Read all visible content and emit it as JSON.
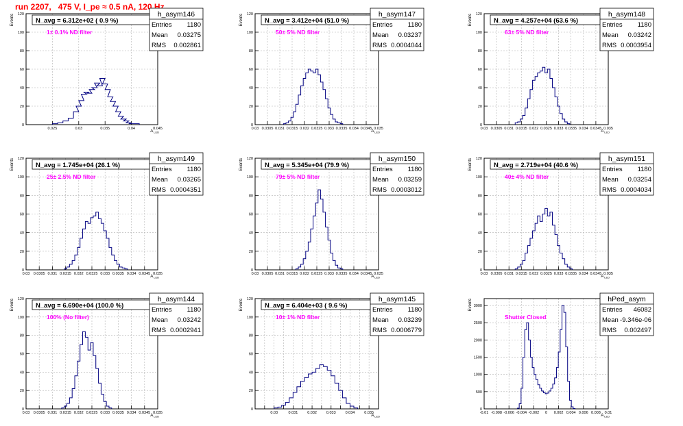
{
  "page_title": "run 2207,   475 V, I_pe ≈ 0.5 nA, 120 Hz",
  "stat_labels": {
    "entries": "Entries",
    "mean": "Mean",
    "rms": "RMS"
  },
  "colors": {
    "title": "#ff0000",
    "histogram": "#000080",
    "annotation": "#ff00ff",
    "grid": "#b0b0b0"
  },
  "chart_data": [
    {
      "type": "histogram",
      "name": "h_asym146",
      "navg": "N_avg = 6.312e+02 ( 0.9 %)",
      "annotation": "1± 0.1% ND filter",
      "entries": "1180",
      "mean": "0.03275",
      "rms": "0.002861",
      "ylabel": "Events",
      "xlabel": "A",
      "xlabel_sub": "LED",
      "xlim": [
        0.02,
        0.045
      ],
      "ylim": [
        0,
        120
      ],
      "xticks": [
        0.025,
        0.03,
        0.035,
        0.04,
        0.045
      ],
      "xtick_labels": [
        "0.025",
        "0.03",
        "0.035",
        "0.04",
        "0.045"
      ],
      "yticks": [
        0,
        20,
        40,
        60,
        80,
        100,
        120
      ],
      "ytick_labels": [
        "0",
        "20",
        "40",
        "60",
        "80",
        "100",
        "120"
      ],
      "x": [
        0.0255,
        0.0265,
        0.0275,
        0.0285,
        0.0295,
        0.03,
        0.0305,
        0.031,
        0.0315,
        0.032,
        0.0325,
        0.033,
        0.0335,
        0.034,
        0.0345,
        0.035,
        0.0355,
        0.036,
        0.0365,
        0.037,
        0.0375,
        0.038,
        0.0385,
        0.039,
        0.0395,
        0.04,
        0.041
      ],
      "values": [
        1,
        2,
        4,
        7,
        14,
        20,
        26,
        33,
        35,
        34,
        38,
        40,
        45,
        42,
        50,
        44,
        38,
        30,
        25,
        20,
        14,
        9,
        6,
        4,
        2,
        1,
        1
      ]
    },
    {
      "type": "histogram",
      "name": "h_asym147",
      "navg": "N_avg = 3.412e+04 (51.0 %)",
      "annotation": "50± 5% ND filter",
      "entries": "1180",
      "mean": "0.03237",
      "rms": "0.0004044",
      "ylabel": "Events",
      "xlabel": "A",
      "xlabel_sub": "LED",
      "xlim": [
        0.03,
        0.035
      ],
      "ylim": [
        0,
        120
      ],
      "xticks": [
        0.03,
        0.0305,
        0.031,
        0.0315,
        0.032,
        0.0325,
        0.033,
        0.0335,
        0.034,
        0.0345,
        0.035
      ],
      "xtick_labels": [
        "0.03",
        "0.0305",
        "0.031",
        "0.0315",
        "0.032",
        "0.0325",
        "0.033",
        "0.0335",
        "0.034",
        "0.0345",
        "0.035"
      ],
      "yticks": [
        0,
        20,
        40,
        60,
        80,
        100,
        120
      ],
      "ytick_labels": [
        "0",
        "20",
        "40",
        "60",
        "80",
        "100",
        "120"
      ],
      "x": [
        0.0312,
        0.0313,
        0.0314,
        0.0315,
        0.0316,
        0.0317,
        0.0318,
        0.0319,
        0.032,
        0.0321,
        0.0322,
        0.0323,
        0.0324,
        0.0325,
        0.0326,
        0.0327,
        0.0328,
        0.0329,
        0.033,
        0.0331,
        0.0332,
        0.0333,
        0.0334,
        0.0335
      ],
      "values": [
        1,
        2,
        4,
        8,
        14,
        22,
        32,
        42,
        50,
        56,
        60,
        58,
        56,
        60,
        54,
        46,
        38,
        28,
        18,
        11,
        6,
        3,
        2,
        1
      ]
    },
    {
      "type": "histogram",
      "name": "h_asym148",
      "navg": "N_avg = 4.257e+04 (63.6 %)",
      "annotation": "63± 5% ND filter",
      "entries": "1180",
      "mean": "0.03242",
      "rms": "0.0003954",
      "ylabel": "Events",
      "xlabel": "A",
      "xlabel_sub": "LED",
      "xlim": [
        0.03,
        0.035
      ],
      "ylim": [
        0,
        120
      ],
      "xticks": [
        0.03,
        0.0305,
        0.031,
        0.0315,
        0.032,
        0.0325,
        0.033,
        0.0335,
        0.034,
        0.0345,
        0.035
      ],
      "xtick_labels": [
        "0.03",
        "0.0305",
        "0.031",
        "0.0315",
        "0.032",
        "0.0325",
        "0.033",
        "0.0335",
        "0.034",
        "0.0345",
        "0.035"
      ],
      "yticks": [
        0,
        20,
        40,
        60,
        80,
        100,
        120
      ],
      "ytick_labels": [
        "0",
        "20",
        "40",
        "60",
        "80",
        "100",
        "120"
      ],
      "x": [
        0.0313,
        0.0314,
        0.0315,
        0.0316,
        0.0317,
        0.0318,
        0.0319,
        0.032,
        0.0321,
        0.0322,
        0.0323,
        0.0324,
        0.0325,
        0.0326,
        0.0327,
        0.0328,
        0.0329,
        0.033,
        0.0331,
        0.0332,
        0.0333,
        0.0334
      ],
      "values": [
        2,
        3,
        6,
        10,
        18,
        28,
        38,
        48,
        52,
        56,
        58,
        62,
        56,
        60,
        50,
        40,
        30,
        20,
        12,
        6,
        3,
        1
      ]
    },
    {
      "type": "histogram",
      "name": "h_asym149",
      "navg": "N_avg = 1.745e+04 (26.1 %)",
      "annotation": "25± 2.5% ND filter",
      "entries": "1180",
      "mean": "0.03265",
      "rms": "0.0004351",
      "ylabel": "Events",
      "xlabel": "A",
      "xlabel_sub": "LED",
      "xlim": [
        0.03,
        0.035
      ],
      "ylim": [
        0,
        120
      ],
      "xticks": [
        0.03,
        0.0305,
        0.031,
        0.0315,
        0.032,
        0.0325,
        0.033,
        0.0335,
        0.034,
        0.0345,
        0.035
      ],
      "xtick_labels": [
        "0.03",
        "0.0305",
        "0.031",
        "0.0315",
        "0.032",
        "0.0325",
        "0.033",
        "0.0335",
        "0.034",
        "0.0345",
        "0.035"
      ],
      "yticks": [
        0,
        20,
        40,
        60,
        80,
        100,
        120
      ],
      "ytick_labels": [
        "0",
        "20",
        "40",
        "60",
        "80",
        "100",
        "120"
      ],
      "x": [
        0.0315,
        0.0316,
        0.0317,
        0.0318,
        0.0319,
        0.032,
        0.0321,
        0.0322,
        0.0323,
        0.0324,
        0.0325,
        0.0326,
        0.0327,
        0.0328,
        0.0329,
        0.033,
        0.0331,
        0.0332,
        0.0333,
        0.0334,
        0.0335,
        0.0336,
        0.0337,
        0.0338
      ],
      "values": [
        1,
        3,
        6,
        10,
        16,
        24,
        34,
        44,
        52,
        50,
        56,
        58,
        62,
        55,
        50,
        42,
        34,
        24,
        16,
        10,
        6,
        3,
        2,
        1
      ]
    },
    {
      "type": "histogram",
      "name": "h_asym150",
      "navg": "N_avg = 5.345e+04 (79.9 %)",
      "annotation": "79± 5% ND filter",
      "entries": "1180",
      "mean": "0.03259",
      "rms": "0.0003012",
      "ylabel": "Events",
      "xlabel": "A",
      "xlabel_sub": "LED",
      "xlim": [
        0.03,
        0.035
      ],
      "ylim": [
        0,
        120
      ],
      "xticks": [
        0.03,
        0.0305,
        0.031,
        0.0315,
        0.032,
        0.0325,
        0.033,
        0.0335,
        0.034,
        0.0345,
        0.035
      ],
      "xtick_labels": [
        "0.03",
        "0.0305",
        "0.031",
        "0.0315",
        "0.032",
        "0.0325",
        "0.033",
        "0.0335",
        "0.034",
        "0.0345",
        "0.035"
      ],
      "yticks": [
        0,
        20,
        40,
        60,
        80,
        100,
        120
      ],
      "ytick_labels": [
        "0",
        "20",
        "40",
        "60",
        "80",
        "100",
        "120"
      ],
      "x": [
        0.0317,
        0.0318,
        0.0319,
        0.032,
        0.0321,
        0.0322,
        0.0323,
        0.0324,
        0.0325,
        0.0326,
        0.0327,
        0.0328,
        0.0329,
        0.033,
        0.0331,
        0.0332,
        0.0333,
        0.0334,
        0.0335
      ],
      "values": [
        1,
        3,
        6,
        12,
        20,
        30,
        44,
        58,
        72,
        86,
        76,
        62,
        46,
        32,
        18,
        10,
        5,
        2,
        1
      ]
    },
    {
      "type": "histogram",
      "name": "h_asym151",
      "navg": "N_avg = 2.719e+04 (40.6 %)",
      "annotation": "40± 4% ND filter",
      "entries": "1180",
      "mean": "0.03254",
      "rms": "0.0004034",
      "ylabel": "Events",
      "xlabel": "A",
      "xlabel_sub": "LED",
      "xlim": [
        0.03,
        0.035
      ],
      "ylim": [
        0,
        120
      ],
      "xticks": [
        0.03,
        0.0305,
        0.031,
        0.0315,
        0.032,
        0.0325,
        0.033,
        0.0335,
        0.034,
        0.0345,
        0.035
      ],
      "xtick_labels": [
        "0.03",
        "0.0305",
        "0.031",
        "0.0315",
        "0.032",
        "0.0325",
        "0.033",
        "0.0335",
        "0.034",
        "0.0345",
        "0.035"
      ],
      "yticks": [
        0,
        20,
        40,
        60,
        80,
        100,
        120
      ],
      "ytick_labels": [
        "0",
        "20",
        "40",
        "60",
        "80",
        "100",
        "120"
      ],
      "x": [
        0.0313,
        0.0314,
        0.0315,
        0.0316,
        0.0317,
        0.0318,
        0.0319,
        0.032,
        0.0321,
        0.0322,
        0.0323,
        0.0324,
        0.0325,
        0.0326,
        0.0327,
        0.0328,
        0.0329,
        0.033,
        0.0331,
        0.0332,
        0.0333,
        0.0334,
        0.0335
      ],
      "values": [
        1,
        3,
        6,
        10,
        18,
        26,
        34,
        42,
        50,
        58,
        52,
        60,
        66,
        58,
        62,
        48,
        38,
        26,
        18,
        12,
        6,
        3,
        1
      ]
    },
    {
      "type": "histogram",
      "name": "h_asym144",
      "navg": "N_avg = 6.690e+04 (100.0 %)",
      "annotation": "100% (No filter)",
      "entries": "1180",
      "mean": "0.03242",
      "rms": "0.0002941",
      "ylabel": "Events",
      "xlabel": "A",
      "xlabel_sub": "LED",
      "xlim": [
        0.03,
        0.035
      ],
      "ylim": [
        0,
        120
      ],
      "xticks": [
        0.03,
        0.0305,
        0.031,
        0.0315,
        0.032,
        0.0325,
        0.033,
        0.0335,
        0.034,
        0.0345,
        0.035
      ],
      "xtick_labels": [
        "0.03",
        "0.0305",
        "0.031",
        "0.0315",
        "0.032",
        "0.0325",
        "0.033",
        "0.0335",
        "0.034",
        "0.0345",
        "0.035"
      ],
      "yticks": [
        0,
        20,
        40,
        60,
        80,
        100,
        120
      ],
      "ytick_labels": [
        "0",
        "20",
        "40",
        "60",
        "80",
        "100",
        "120"
      ],
      "x": [
        0.0314,
        0.0315,
        0.0316,
        0.0317,
        0.0318,
        0.0319,
        0.032,
        0.0321,
        0.0322,
        0.0323,
        0.0324,
        0.0325,
        0.0326,
        0.0327,
        0.0328,
        0.0329,
        0.033,
        0.0331,
        0.0332
      ],
      "values": [
        1,
        3,
        6,
        12,
        22,
        36,
        52,
        70,
        84,
        78,
        64,
        72,
        58,
        44,
        28,
        16,
        8,
        3,
        1
      ]
    },
    {
      "type": "histogram",
      "name": "h_asym145",
      "navg": "N_avg = 6.404e+03 ( 9.6 %)",
      "annotation": "10± 1% ND filter",
      "entries": "1180",
      "mean": "0.03239",
      "rms": "0.0006779",
      "ylabel": "Events",
      "xlabel": "A",
      "xlabel_sub": "LED",
      "xlim": [
        0.029,
        0.0355
      ],
      "ylim": [
        0,
        120
      ],
      "xticks": [
        0.029,
        0.0295,
        0.03,
        0.0305,
        0.031,
        0.0315,
        0.032,
        0.0325,
        0.033,
        0.0335,
        0.034,
        0.0345,
        0.035,
        0.0355
      ],
      "xtick_labels": [
        "",
        "",
        "0.03",
        "",
        "0.031",
        "",
        "0.032",
        "",
        "0.033",
        "",
        "0.034",
        "",
        "0.035",
        ""
      ],
      "yticks": [
        0,
        20,
        40,
        60,
        80,
        100,
        120
      ],
      "ytick_labels": [
        "0",
        "20",
        "40",
        "60",
        "80",
        "100",
        "120"
      ],
      "x": [
        0.0301,
        0.0303,
        0.0305,
        0.0307,
        0.0309,
        0.0311,
        0.0313,
        0.0315,
        0.0317,
        0.0319,
        0.0321,
        0.0323,
        0.0325,
        0.0327,
        0.0329,
        0.0331,
        0.0333,
        0.0335,
        0.0337,
        0.0339,
        0.0341,
        0.0343
      ],
      "values": [
        1,
        2,
        4,
        7,
        12,
        18,
        24,
        30,
        34,
        38,
        40,
        44,
        48,
        46,
        42,
        36,
        28,
        20,
        12,
        6,
        3,
        1
      ]
    },
    {
      "type": "histogram",
      "name": "hPed_asym",
      "navg": "",
      "annotation": "Shutter Closed",
      "entries": "46082",
      "mean": "-9.346e-06",
      "rms": "0.002497",
      "ylabel": "Events",
      "xlabel": "A",
      "xlabel_sub": "LED",
      "xlim": [
        -0.01,
        0.01
      ],
      "ylim": [
        0,
        3200
      ],
      "xticks": [
        -0.01,
        -0.008,
        -0.006,
        -0.004,
        -0.002,
        0,
        0.002,
        0.004,
        0.006,
        0.008,
        0.01
      ],
      "xtick_labels": [
        "-0.01",
        "-0.008",
        "-0.006",
        "-0.004",
        "-0.002",
        "0",
        "0.002",
        "0.004",
        "0.006",
        "0.008",
        "0.01"
      ],
      "yticks": [
        0,
        500,
        1000,
        1500,
        2000,
        2500,
        3000
      ],
      "ytick_labels": [
        "0",
        "500",
        "1000",
        "1500",
        "2000",
        "2500",
        "3000"
      ],
      "x": [
        -0.0045,
        -0.0042,
        -0.0039,
        -0.0036,
        -0.0033,
        -0.003,
        -0.0027,
        -0.0024,
        -0.0021,
        -0.0018,
        -0.0015,
        -0.0012,
        -0.0009,
        -0.0006,
        -0.0003,
        0,
        0.0003,
        0.0006,
        0.0009,
        0.0012,
        0.0015,
        0.0018,
        0.0021,
        0.0024,
        0.0027,
        0.003,
        0.0033,
        0.0036,
        0.0039,
        0.0042,
        0.0045
      ],
      "values": [
        20,
        150,
        600,
        1500,
        2300,
        2500,
        2000,
        1500,
        1200,
        1000,
        850,
        700,
        600,
        520,
        470,
        440,
        460,
        520,
        600,
        720,
        900,
        1200,
        1650,
        2300,
        3000,
        2800,
        1800,
        800,
        250,
        60,
        10
      ]
    }
  ]
}
